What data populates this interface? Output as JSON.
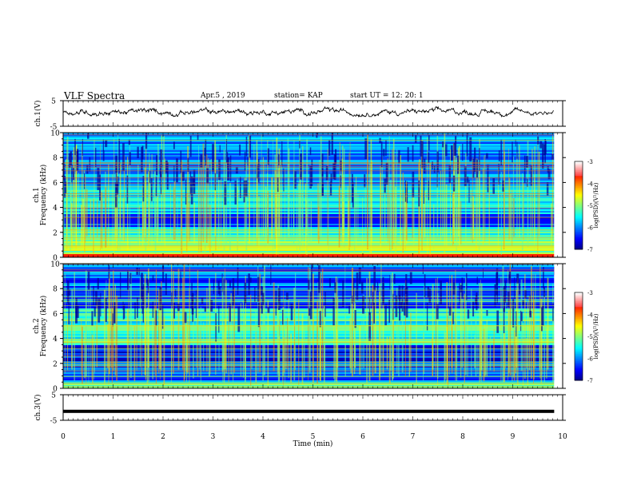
{
  "header": {
    "title": "VLF Spectra",
    "date": "Apr.5 , 2019",
    "station": "station= KAP",
    "start": "start UT =  12: 20: 1"
  },
  "chart_data": [
    {
      "type": "line",
      "panel": "ch1-waveform",
      "ylabel": "ch.1(V)",
      "ylim": [
        -5,
        5
      ],
      "yticks": [
        5,
        -5
      ],
      "xlim": [
        0,
        10
      ],
      "x_extent_min": [
        0,
        9.83
      ],
      "trace_mean_v": 0.6,
      "trace_range_v": [
        -1.2,
        2.7
      ]
    },
    {
      "type": "heatmap",
      "panel": "ch1-spectrogram",
      "ylabel": "Frequency (kHz)",
      "channel_label": "ch.1",
      "ylim": [
        0,
        10
      ],
      "yticks": [
        0,
        2,
        4,
        6,
        8,
        10
      ],
      "xlim": [
        0,
        10
      ],
      "colorbar": {
        "label": "log(PSD)(V²/Hz)",
        "ticks": [
          -3,
          -4,
          -5,
          -6,
          -7
        ],
        "range": [
          -7,
          -3
        ]
      },
      "bands_khz": [
        {
          "f": [
            0.0,
            0.3
          ],
          "level": -3.6
        },
        {
          "f": [
            0.3,
            0.8
          ],
          "level": -4.8
        },
        {
          "f": [
            0.8,
            1.8
          ],
          "level": -5.0
        },
        {
          "f": [
            1.8,
            2.5
          ],
          "level": -5.2
        },
        {
          "f": [
            2.5,
            3.5
          ],
          "level": -6.4
        },
        {
          "f": [
            3.5,
            6.0
          ],
          "level": -5.6
        },
        {
          "f": [
            6.0,
            10.0
          ],
          "level": -6.0
        }
      ]
    },
    {
      "type": "heatmap",
      "panel": "ch2-spectrogram",
      "ylabel": "Frequency (kHz)",
      "channel_label": "ch.2",
      "ylim": [
        0,
        10
      ],
      "yticks": [
        0,
        2,
        4,
        6,
        8,
        10
      ],
      "xlim": [
        0,
        10
      ],
      "colorbar": {
        "label": "log(PSD)(V²/Hz)",
        "ticks": [
          -3,
          -4,
          -5,
          -6,
          -7
        ],
        "range": [
          -7,
          -3
        ]
      },
      "bands_khz": [
        {
          "f": [
            0.0,
            0.6
          ],
          "level": -5.0
        },
        {
          "f": [
            0.6,
            2.2
          ],
          "level": -6.2
        },
        {
          "f": [
            2.2,
            3.5
          ],
          "level": -6.4
        },
        {
          "f": [
            3.5,
            6.5
          ],
          "level": -5.4
        },
        {
          "f": [
            6.5,
            10.0
          ],
          "level": -6.1
        }
      ]
    },
    {
      "type": "line",
      "panel": "ch3-waveform",
      "ylabel": "ch.3(V)",
      "ylim": [
        -5,
        5
      ],
      "yticks": [
        5,
        -5
      ],
      "xlim": [
        0,
        10
      ],
      "x_extent_min": [
        0,
        9.83
      ],
      "constant_value_v": -1.5
    }
  ],
  "xaxis": {
    "label": "Time (min)",
    "ticks": [
      0,
      1,
      2,
      3,
      4,
      5,
      6,
      7,
      8,
      9,
      10
    ]
  },
  "colors": {
    "trace": "#000000",
    "axis": "#000000"
  }
}
